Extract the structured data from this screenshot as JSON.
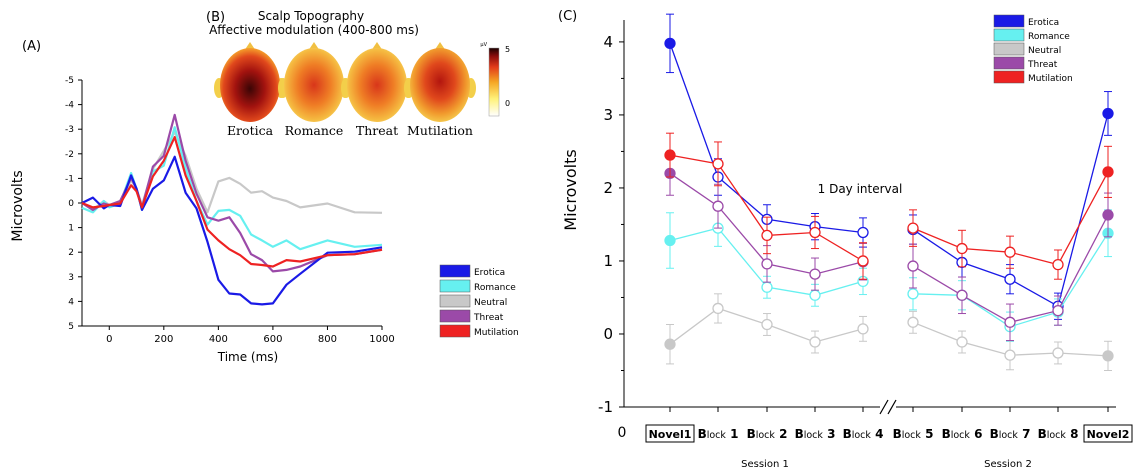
{
  "panelA": {
    "letter": "(A)",
    "ylabel": "Microvolts",
    "xlabel": "Time (ms)",
    "xticks": [
      "0",
      "200",
      "400",
      "600",
      "800",
      "1000"
    ],
    "yticks": [
      "-5",
      "-4",
      "-3",
      "-2",
      "-1",
      "0",
      "1",
      "2",
      "3",
      "4",
      "5"
    ],
    "legend": [
      "Erotica",
      "Romance",
      "Neutral",
      "Threat",
      "Mutilation"
    ]
  },
  "panelB": {
    "letter": "(B)",
    "title_line1": "Scalp Topography",
    "title_line2": "Affective modulation (400-800 ms)",
    "colorbar_unit": "µV",
    "colorbar_max": "5",
    "colorbar_min": "0",
    "heads": [
      {
        "label": "Erotica",
        "intensity": 1.0
      },
      {
        "label": "Romance",
        "intensity": 0.55
      },
      {
        "label": "Threat",
        "intensity": 0.6
      },
      {
        "label": "Mutilation",
        "intensity": 0.75
      }
    ]
  },
  "panelC": {
    "letter": "(C)",
    "ylabel": "Microvolts",
    "annotation": "1 Day interval",
    "origin_label": "0",
    "session1": "Session 1",
    "session2": "Session 2",
    "legend": [
      "Erotica",
      "Romance",
      "Neutral",
      "Threat",
      "Mutilation"
    ]
  },
  "colors": {
    "Erotica": "#1a1ae6",
    "Romance": "#66f0f0",
    "Neutral": "#c8c8c8",
    "Threat": "#9b4aa8",
    "Mutilation": "#ee2222"
  },
  "chart_data": [
    {
      "type": "line",
      "panel": "A",
      "xlabel": "Time (ms)",
      "ylabel": "Microvolts",
      "xlim": [
        -100,
        1000
      ],
      "ylim": [
        -5,
        5
      ],
      "y_inverted": true,
      "series": [
        {
          "name": "Erotica",
          "x": [
            -100,
            -60,
            -20,
            0,
            40,
            80,
            100,
            120,
            160,
            200,
            240,
            280,
            320,
            360,
            400,
            440,
            480,
            520,
            560,
            600,
            650,
            700,
            800,
            900,
            1000
          ],
          "values": [
            0,
            -0.3,
            0.3,
            0,
            0.2,
            -1.2,
            -0.5,
            0.2,
            -0.5,
            -1.0,
            -1.8,
            -0.5,
            0.3,
            1.5,
            3.2,
            3.6,
            3.8,
            4.0,
            4.2,
            4.0,
            3.4,
            2.8,
            2.1,
            1.9,
            1.8
          ]
        },
        {
          "name": "Romance",
          "x": [
            -100,
            -60,
            -20,
            0,
            40,
            80,
            100,
            120,
            160,
            200,
            240,
            280,
            320,
            360,
            400,
            440,
            480,
            520,
            560,
            600,
            650,
            700,
            800,
            900,
            1000
          ],
          "values": [
            0.2,
            0.3,
            0,
            0.1,
            0.1,
            -1.3,
            -0.5,
            0.2,
            -1.2,
            -1.6,
            -3.0,
            -1.5,
            0,
            0.8,
            0.4,
            0.2,
            0.6,
            1.2,
            1.6,
            1.7,
            1.6,
            1.8,
            1.6,
            1.7,
            1.7
          ]
        },
        {
          "name": "Neutral",
          "x": [
            -100,
            -60,
            -20,
            0,
            40,
            80,
            100,
            120,
            160,
            200,
            240,
            280,
            320,
            360,
            400,
            440,
            480,
            520,
            560,
            600,
            650,
            700,
            800,
            900,
            1000
          ],
          "values": [
            0,
            0.2,
            0,
            0,
            0,
            -1.0,
            -0.5,
            0,
            -1.3,
            -2.2,
            -2.8,
            -2.0,
            -0.5,
            0.3,
            -0.8,
            -1.1,
            -0.7,
            -0.5,
            -0.4,
            -0.3,
            0,
            0.1,
            0.1,
            0.3,
            0.4
          ]
        },
        {
          "name": "Threat",
          "x": [
            -100,
            -60,
            -20,
            0,
            40,
            80,
            100,
            120,
            160,
            200,
            240,
            280,
            320,
            360,
            400,
            440,
            480,
            520,
            560,
            600,
            650,
            700,
            800,
            900,
            1000
          ],
          "values": [
            0,
            0.2,
            0.1,
            0,
            0,
            -1.1,
            -0.5,
            0.1,
            -1.4,
            -2.0,
            -3.5,
            -1.8,
            -0.3,
            0.5,
            0.8,
            0.5,
            1.3,
            2.0,
            2.4,
            2.7,
            2.8,
            2.5,
            2.2,
            2.0,
            1.9
          ]
        },
        {
          "name": "Mutilation",
          "x": [
            -100,
            -60,
            -20,
            0,
            40,
            80,
            100,
            120,
            160,
            200,
            240,
            280,
            320,
            360,
            400,
            440,
            480,
            520,
            560,
            600,
            650,
            700,
            800,
            900,
            1000
          ],
          "values": [
            0,
            0.1,
            0.2,
            0,
            0.1,
            -0.8,
            -0.4,
            0.1,
            -1.0,
            -1.8,
            -2.6,
            -1.2,
            0,
            1.0,
            1.6,
            1.8,
            2.2,
            2.4,
            2.6,
            2.5,
            2.4,
            2.3,
            2.2,
            2.0,
            1.9
          ]
        }
      ]
    },
    {
      "type": "line",
      "panel": "C",
      "ylabel": "Microvolts",
      "categories": [
        "Novel 1",
        "Block 1",
        "Block 2",
        "Block 3",
        "Block 4",
        "Block 5",
        "Block 6",
        "Block 7",
        "Block 8",
        "Novel 2"
      ],
      "ylim": [
        -1,
        4.3
      ],
      "yticks": [
        -1,
        0,
        1,
        2,
        3,
        4
      ],
      "axis_break_between": [
        "Block 4",
        "Block 5"
      ],
      "series": [
        {
          "name": "Erotica",
          "values": [
            3.98,
            2.15,
            1.57,
            1.47,
            1.39,
            1.43,
            0.98,
            0.75,
            0.38,
            3.02
          ],
          "error": [
            0.4,
            0.25,
            0.2,
            0.18,
            0.2,
            0.2,
            0.2,
            0.2,
            0.18,
            0.3
          ]
        },
        {
          "name": "Romance",
          "values": [
            1.28,
            1.45,
            0.64,
            0.53,
            0.72,
            0.55,
            0.53,
            0.1,
            0.3,
            1.38
          ],
          "error": [
            0.38,
            0.25,
            0.15,
            0.15,
            0.18,
            0.22,
            0.2,
            0.2,
            0.18,
            0.32
          ]
        },
        {
          "name": "Neutral",
          "values": [
            -0.14,
            0.35,
            0.13,
            -0.11,
            0.07,
            0.16,
            -0.11,
            -0.29,
            -0.26,
            -0.3
          ],
          "error": [
            0.27,
            0.2,
            0.15,
            0.15,
            0.17,
            0.15,
            0.15,
            0.2,
            0.15,
            0.2
          ]
        },
        {
          "name": "Threat",
          "values": [
            2.2,
            1.75,
            0.96,
            0.82,
            0.99,
            0.93,
            0.53,
            0.16,
            0.32,
            1.63
          ],
          "error": [
            0.3,
            0.3,
            0.25,
            0.22,
            0.25,
            0.3,
            0.25,
            0.25,
            0.2,
            0.3
          ]
        },
        {
          "name": "Mutilation",
          "values": [
            2.45,
            2.33,
            1.35,
            1.39,
            1.0,
            1.45,
            1.17,
            1.12,
            0.95,
            2.22
          ],
          "error": [
            0.3,
            0.3,
            0.25,
            0.22,
            0.25,
            0.25,
            0.25,
            0.22,
            0.2,
            0.35
          ]
        }
      ]
    }
  ]
}
